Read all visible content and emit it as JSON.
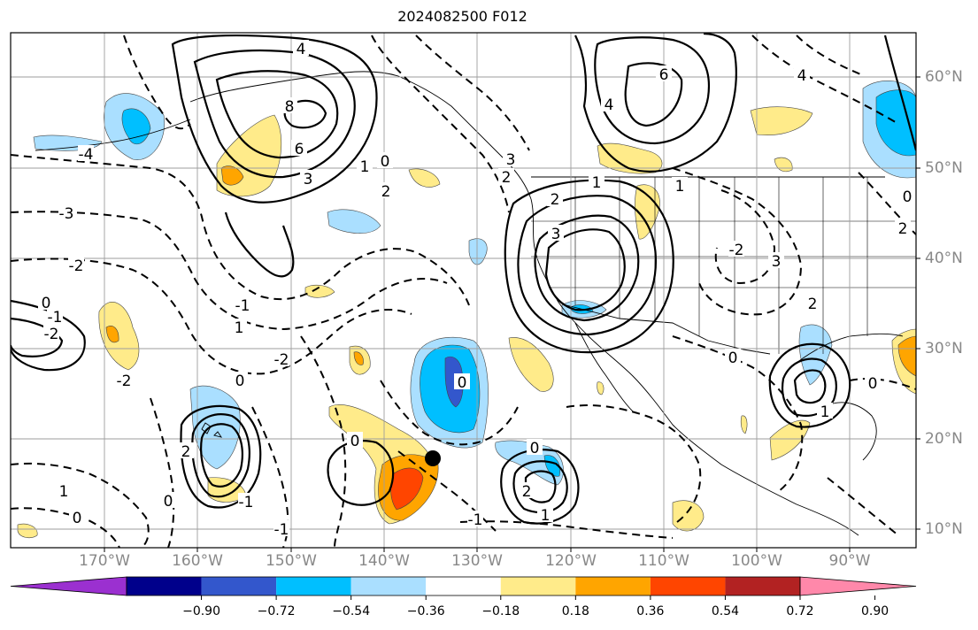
{
  "title": "2024082500 F012",
  "lon_labels": [
    "170°W",
    "160°W",
    "150°W",
    "140°W",
    "130°W",
    "120°W",
    "110°W",
    "100°W",
    "90°W"
  ],
  "lat_labels": [
    "60°N",
    "50°N",
    "40°N",
    "30°N",
    "20°N",
    "10°N"
  ],
  "colorbar": {
    "colors": [
      "#9b30d0",
      "#00008b",
      "#3357cc",
      "#00bfff",
      "#aadfff",
      "#ffffff",
      "#ffeb8a",
      "#ffa500",
      "#ff4500",
      "#b22222",
      "#ff88aa"
    ],
    "ticks": [
      "−0.90",
      "−0.72",
      "−0.54",
      "−0.36",
      "−0.18",
      "0.18",
      "0.36",
      "0.54",
      "0.72",
      "0.90"
    ]
  },
  "contour_labels": [
    "4",
    "8",
    "6",
    "3",
    "1",
    "2",
    "3",
    "2",
    "0",
    "-4",
    "-3",
    "-2",
    "0",
    "-1",
    "-2",
    "1",
    "-1",
    "2",
    "0",
    "-1",
    "0",
    "-2",
    "1",
    "0",
    "0",
    "0",
    "2",
    "1",
    "-1",
    "6",
    "4",
    "3",
    "2",
    "1",
    "0",
    "-2",
    "3",
    "4",
    "2",
    "2",
    "0",
    "1",
    "-1",
    "0",
    "1",
    "-2",
    "0"
  ]
}
